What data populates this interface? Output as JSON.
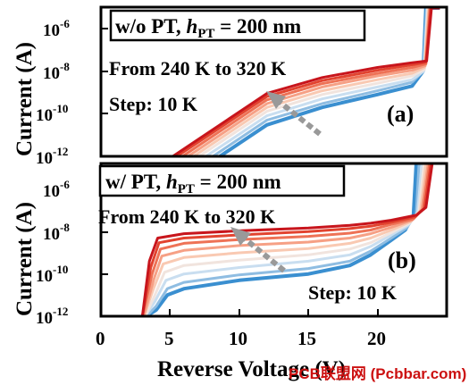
{
  "chart_data": [
    {
      "panel": "(a)",
      "type": "line",
      "yscale": "log",
      "ylim": [
        1e-12,
        3e-05
      ],
      "xlim": [
        0,
        25
      ],
      "yticks": [
        "10^-6",
        "10^-8",
        "10^-10",
        "10^-12"
      ],
      "title_main": "w/o PT, ",
      "title_var": "h",
      "title_sub": "PT",
      "title_rest": " = 200 nm",
      "annotations": [
        "From 240 K to 320 K",
        "Step: 10 K"
      ],
      "series": [
        {
          "values": [
            [
              8.6,
              1e-12
            ],
            [
              12,
              3e-11
            ],
            [
              16,
              2e-10
            ],
            [
              20,
              8e-10
            ],
            [
              22.5,
              2e-09
            ],
            [
              23.3,
              1e-08
            ],
            [
              23.5,
              1.5e-05
            ],
            [
              24.5,
              1.5e-05
            ]
          ]
        },
        {
          "values": [
            [
              8.1,
              1e-12
            ],
            [
              12,
              5e-11
            ],
            [
              16,
              3e-10
            ],
            [
              20,
              1.2e-09
            ],
            [
              22.5,
              3e-09
            ],
            [
              23.3,
              1e-08
            ],
            [
              23.55,
              1.5e-05
            ],
            [
              24.5,
              1.5e-05
            ]
          ]
        },
        {
          "values": [
            [
              7.6,
              1e-12
            ],
            [
              12,
              8e-11
            ],
            [
              16,
              5e-10
            ],
            [
              20,
              1.8e-09
            ],
            [
              22.5,
              4e-09
            ],
            [
              23.35,
              1e-08
            ],
            [
              23.6,
              1.5e-05
            ],
            [
              24.5,
              1.5e-05
            ]
          ]
        },
        {
          "values": [
            [
              7.1,
              1e-12
            ],
            [
              12,
              1.3e-10
            ],
            [
              16,
              8e-10
            ],
            [
              20,
              2.7e-09
            ],
            [
              22.5,
              6e-09
            ],
            [
              23.4,
              1.2e-08
            ],
            [
              23.65,
              1.5e-05
            ],
            [
              24.5,
              1.5e-05
            ]
          ]
        },
        {
          "values": [
            [
              6.7,
              1e-12
            ],
            [
              12,
              2e-10
            ],
            [
              16,
              1.2e-09
            ],
            [
              20,
              4e-09
            ],
            [
              22.5,
              8e-09
            ],
            [
              23.4,
              1.5e-08
            ],
            [
              23.7,
              1.5e-05
            ],
            [
              24.5,
              1.5e-05
            ]
          ]
        },
        {
          "values": [
            [
              6.3,
              1e-12
            ],
            [
              12,
              3e-10
            ],
            [
              16,
              1.8e-09
            ],
            [
              20,
              6e-09
            ],
            [
              22.5,
              1.1e-08
            ],
            [
              23.45,
              1.8e-08
            ],
            [
              23.75,
              1.5e-05
            ],
            [
              24.5,
              1.5e-05
            ]
          ]
        },
        {
          "values": [
            [
              5.9,
              1e-12
            ],
            [
              12,
              4.5e-10
            ],
            [
              16,
              2.6e-09
            ],
            [
              20,
              8e-09
            ],
            [
              22.5,
              1.5e-08
            ],
            [
              23.5,
              2.2e-08
            ],
            [
              23.8,
              1.5e-05
            ],
            [
              24.5,
              1.5e-05
            ]
          ]
        },
        {
          "values": [
            [
              5.5,
              1e-12
            ],
            [
              12,
              6.5e-10
            ],
            [
              16,
              3.6e-09
            ],
            [
              20,
              1.1e-08
            ],
            [
              22.5,
              2e-08
            ],
            [
              23.5,
              2.6e-08
            ],
            [
              23.85,
              1.5e-05
            ],
            [
              24.5,
              1.5e-05
            ]
          ]
        },
        {
          "values": [
            [
              5.2,
              1e-12
            ],
            [
              12,
              9e-10
            ],
            [
              16,
              5e-09
            ],
            [
              20,
              1.5e-08
            ],
            [
              22.5,
              2.5e-08
            ],
            [
              23.55,
              3e-08
            ],
            [
              23.9,
              1.5e-05
            ],
            [
              24.5,
              1.5e-05
            ]
          ]
        }
      ]
    },
    {
      "panel": "(b)",
      "type": "line",
      "yscale": "log",
      "ylim": [
        1e-12,
        3e-05
      ],
      "xlim": [
        0,
        25
      ],
      "xticks": [
        "0",
        "5",
        "10",
        "15",
        "20"
      ],
      "xlabel": "Reverse Voltage (V)",
      "yticks": [
        "10^-6",
        "10^-8",
        "10^-10",
        "10^-12"
      ],
      "title_main": "w/ PT, ",
      "title_var": "h",
      "title_sub": "PT",
      "title_rest": " = 200 nm",
      "annotations": [
        "From 240 K to 320 K",
        "Step: 10 K"
      ],
      "series": [
        {
          "values": [
            [
              3.3,
              1e-12
            ],
            [
              4,
              2e-12
            ],
            [
              4.8,
              1e-11
            ],
            [
              6,
              2e-11
            ],
            [
              10,
              5e-11
            ],
            [
              15,
              1e-10
            ],
            [
              18,
              2.5e-10
            ],
            [
              19.5,
              8e-10
            ],
            [
              21,
              4e-09
            ],
            [
              22,
              1.2e-08
            ],
            [
              22.6,
              6e-08
            ],
            [
              22.8,
              1.5e-05
            ],
            [
              24,
              1.5e-05
            ]
          ]
        },
        {
          "values": [
            [
              3.3,
              1e-12
            ],
            [
              4,
              3e-12
            ],
            [
              4.8,
              2e-11
            ],
            [
              6,
              4e-11
            ],
            [
              10,
              9e-11
            ],
            [
              15,
              1.8e-10
            ],
            [
              18,
              4e-10
            ],
            [
              19.5,
              1.2e-09
            ],
            [
              21,
              5e-09
            ],
            [
              22.1,
              1.5e-08
            ],
            [
              22.8,
              7e-08
            ],
            [
              23,
              1.5e-05
            ],
            [
              24,
              1.5e-05
            ]
          ]
        },
        {
          "values": [
            [
              3.2,
              1e-12
            ],
            [
              3.9,
              5e-12
            ],
            [
              4.7,
              5e-11
            ],
            [
              6,
              1e-10
            ],
            [
              10,
              2e-10
            ],
            [
              15,
              4e-10
            ],
            [
              18,
              8e-10
            ],
            [
              19.5,
              2e-09
            ],
            [
              21,
              7e-09
            ],
            [
              22.2,
              2e-08
            ],
            [
              22.9,
              8e-08
            ],
            [
              23.2,
              1.5e-05
            ],
            [
              24,
              1.5e-05
            ]
          ]
        },
        {
          "values": [
            [
              3.2,
              1e-12
            ],
            [
              3.9,
              1e-11
            ],
            [
              4.6,
              1.2e-10
            ],
            [
              6,
              2.5e-10
            ],
            [
              10,
              4.5e-10
            ],
            [
              15,
              8e-10
            ],
            [
              18,
              1.5e-09
            ],
            [
              19.5,
              3e-09
            ],
            [
              21,
              9e-09
            ],
            [
              22.3,
              2.5e-08
            ],
            [
              23,
              9e-08
            ],
            [
              23.35,
              1.5e-05
            ],
            [
              24,
              1.5e-05
            ]
          ]
        },
        {
          "values": [
            [
              3.1,
              1e-12
            ],
            [
              3.8,
              2e-11
            ],
            [
              4.5,
              3e-10
            ],
            [
              6,
              6e-10
            ],
            [
              10,
              1e-09
            ],
            [
              15,
              1.6e-09
            ],
            [
              18,
              2.8e-09
            ],
            [
              19.5,
              5e-09
            ],
            [
              21,
              1.2e-08
            ],
            [
              22.4,
              3e-08
            ],
            [
              23.1,
              1e-07
            ],
            [
              23.5,
              1.5e-05
            ],
            [
              24,
              1.5e-05
            ]
          ]
        },
        {
          "values": [
            [
              3.1,
              1e-12
            ],
            [
              3.8,
              5e-11
            ],
            [
              4.4,
              7e-10
            ],
            [
              6,
              1.3e-09
            ],
            [
              10,
              2.2e-09
            ],
            [
              15,
              3.2e-09
            ],
            [
              18,
              5e-09
            ],
            [
              19.5,
              8e-09
            ],
            [
              21,
              1.6e-08
            ],
            [
              22.5,
              3.5e-08
            ],
            [
              23.2,
              1.1e-07
            ],
            [
              23.65,
              1.5e-05
            ],
            [
              24,
              1.5e-05
            ]
          ]
        },
        {
          "values": [
            [
              3.0,
              1e-12
            ],
            [
              3.7,
              1e-10
            ],
            [
              4.3,
              1.5e-09
            ],
            [
              6,
              2.8e-09
            ],
            [
              10,
              4.2e-09
            ],
            [
              15,
              6e-09
            ],
            [
              18,
              8.5e-09
            ],
            [
              19.5,
              1.2e-08
            ],
            [
              21,
              2.2e-08
            ],
            [
              22.6,
              4e-08
            ],
            [
              23.3,
              1.2e-07
            ],
            [
              23.75,
              1.5e-05
            ],
            [
              24,
              1.5e-05
            ]
          ]
        },
        {
          "values": [
            [
              3.0,
              1e-12
            ],
            [
              3.6,
              2e-10
            ],
            [
              4.2,
              3e-09
            ],
            [
              6,
              5e-09
            ],
            [
              10,
              7e-09
            ],
            [
              15,
              1e-08
            ],
            [
              18,
              1.4e-08
            ],
            [
              19.5,
              1.8e-08
            ],
            [
              21,
              2.8e-08
            ],
            [
              22.7,
              5e-08
            ],
            [
              23.4,
              1.3e-07
            ],
            [
              23.85,
              1.5e-05
            ],
            [
              24,
              1.5e-05
            ]
          ]
        },
        {
          "values": [
            [
              3.0,
              1e-12
            ],
            [
              3.5,
              4e-10
            ],
            [
              4.1,
              5e-09
            ],
            [
              6,
              8e-09
            ],
            [
              10,
              1.1e-08
            ],
            [
              15,
              1.5e-08
            ],
            [
              18,
              2e-08
            ],
            [
              19.5,
              2.5e-08
            ],
            [
              21,
              3.5e-08
            ],
            [
              22.8,
              6e-08
            ],
            [
              23.5,
              1.4e-07
            ],
            [
              23.95,
              1.5e-05
            ],
            [
              24,
              1.5e-05
            ]
          ]
        }
      ]
    }
  ],
  "ylabel": "Current (A)",
  "colors": [
    "#3a8fd0",
    "#8fbde2",
    "#c9def0",
    "#f1e4de",
    "#f9c9b2",
    "#f6a085",
    "#ee7256",
    "#e2432f",
    "#c8151c"
  ],
  "watermark": "PCB联盟网 (Pcbbar.com)"
}
